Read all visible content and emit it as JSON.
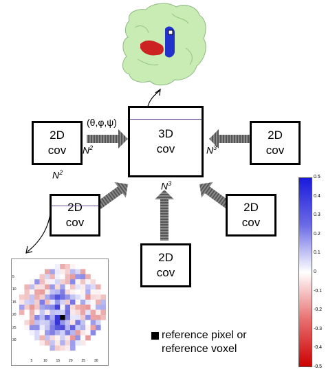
{
  "boxes": {
    "center": {
      "line1": "3D",
      "line2": "cov"
    },
    "left": {
      "line1": "2D",
      "line2": "cov"
    },
    "right": {
      "line1": "2D",
      "line2": "cov"
    },
    "lower_left": {
      "line1": "2D",
      "line2": "cov"
    },
    "lower_right": {
      "line1": "2D",
      "line2": "cov"
    },
    "bottom": {
      "line1": "2D",
      "line2": "cov"
    }
  },
  "labels": {
    "angles": "(θ,φ,ψ)",
    "n2_arrow": {
      "base": "N",
      "exp": "2"
    },
    "n2_below": {
      "base": "N",
      "exp": "2"
    },
    "n3_right": {
      "base": "N",
      "exp": "3"
    },
    "n3_below": {
      "base": "N",
      "exp": "3"
    }
  },
  "legend": {
    "text_line1": "reference pixel or",
    "text_line2": "reference voxel"
  },
  "colorbar": {
    "ticks": [
      "0.5",
      "0.4",
      "0.3",
      "0.2",
      "0.1",
      "0",
      "-0.1",
      "-0.2",
      "-0.3",
      "-0.4",
      "-0.5"
    ],
    "colors": {
      "max": "#1a1adc",
      "mid": "#ffffff",
      "min": "#cc0000"
    }
  },
  "heatmap": {
    "y_ticks": [
      "5",
      "10",
      "15",
      "20",
      "25",
      "30"
    ],
    "x_ticks": [
      "5",
      "10",
      "15",
      "20",
      "25",
      "30"
    ],
    "grid_size": 17
  },
  "protein": {
    "colors": {
      "surface": "#c8ecb4",
      "helix_blue": "#2233cc",
      "helix_red": "#cc2222"
    }
  }
}
